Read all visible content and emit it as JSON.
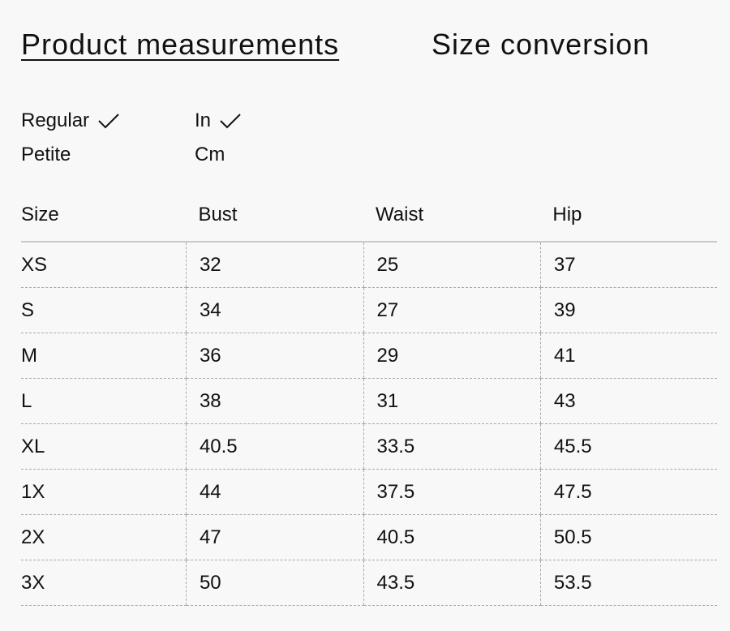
{
  "tabs": {
    "measurements": "Product measurements",
    "conversion": "Size conversion"
  },
  "fit_options": [
    {
      "label": "Regular",
      "selected": true
    },
    {
      "label": "Petite",
      "selected": false
    }
  ],
  "unit_options": [
    {
      "label": "In",
      "selected": true
    },
    {
      "label": "Cm",
      "selected": false
    }
  ],
  "table": {
    "headers": [
      "Size",
      "Bust",
      "Waist",
      "Hip"
    ],
    "rows": [
      [
        "XS",
        "32",
        "25",
        "37"
      ],
      [
        "S",
        "34",
        "27",
        "39"
      ],
      [
        "M",
        "36",
        "29",
        "41"
      ],
      [
        "L",
        "38",
        "31",
        "43"
      ],
      [
        "XL",
        "40.5",
        "33.5",
        "45.5"
      ],
      [
        "1X",
        "44",
        "37.5",
        "47.5"
      ],
      [
        "2X",
        "47",
        "40.5",
        "50.5"
      ],
      [
        "3X",
        "50",
        "43.5",
        "53.5"
      ]
    ]
  }
}
